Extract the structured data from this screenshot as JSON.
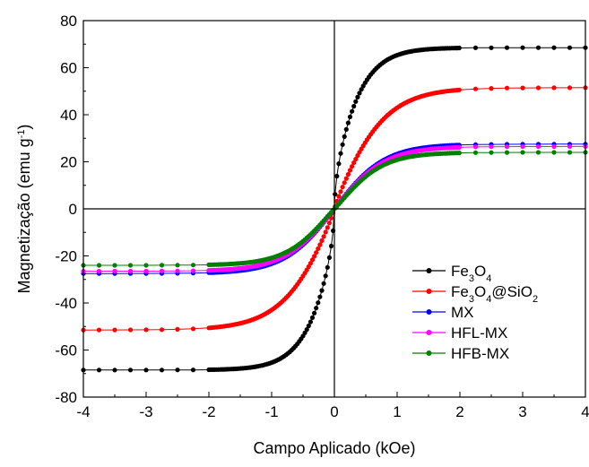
{
  "chart_data": {
    "type": "scatter",
    "xlabel": "Campo Aplicado (kOe)",
    "ylabel": "Magnetização (emu g-1)",
    "ylabel_parts": {
      "main": "Magnetização (emu g",
      "sup": "-1",
      "close": ")"
    },
    "xlim": [
      -4,
      4
    ],
    "ylim": [
      -80,
      80
    ],
    "x_ticks": [
      -4,
      -3,
      -2,
      -1,
      0,
      1,
      2,
      3,
      4
    ],
    "y_ticks": [
      -80,
      -60,
      -40,
      -20,
      0,
      20,
      40,
      60,
      80
    ],
    "zero_lines": true,
    "grid": false,
    "legend_position": "bottom-right",
    "dense_range": [
      -2,
      2
    ],
    "dense_step": 0.03,
    "sparse_step": 0.25,
    "series": [
      {
        "name": "Fe3O4",
        "name_parts": [
          [
            "Fe",
            false
          ],
          [
            "3",
            true
          ],
          [
            "O",
            false
          ],
          [
            "4",
            true
          ]
        ],
        "color": "#000000",
        "ms": 68.5,
        "k": 1.6,
        "p": 0.58
      },
      {
        "name": "Fe3O4@SiO2",
        "name_parts": [
          [
            "Fe",
            false
          ],
          [
            "3",
            true
          ],
          [
            "O",
            false
          ],
          [
            "4",
            true
          ],
          [
            "@SiO",
            false
          ],
          [
            "2",
            true
          ]
        ],
        "color": "#ff0000",
        "ms": 51.5,
        "k": 1.15,
        "p": 0.9
      },
      {
        "name": "MX",
        "name_parts": [
          [
            "MX",
            false
          ]
        ],
        "color": "#0000ff",
        "ms": 27.5,
        "k": 1.25,
        "p": 1.0
      },
      {
        "name": "HFL-MX",
        "name_parts": [
          [
            "HFL-MX",
            false
          ]
        ],
        "color": "#ff00ff",
        "ms": 26.5,
        "k": 1.25,
        "p": 1.0
      },
      {
        "name": "HFB-MX",
        "name_parts": [
          [
            "HFB-MX",
            false
          ]
        ],
        "color": "#008000",
        "ms": 24.0,
        "k": 1.35,
        "p": 1.05
      }
    ]
  }
}
